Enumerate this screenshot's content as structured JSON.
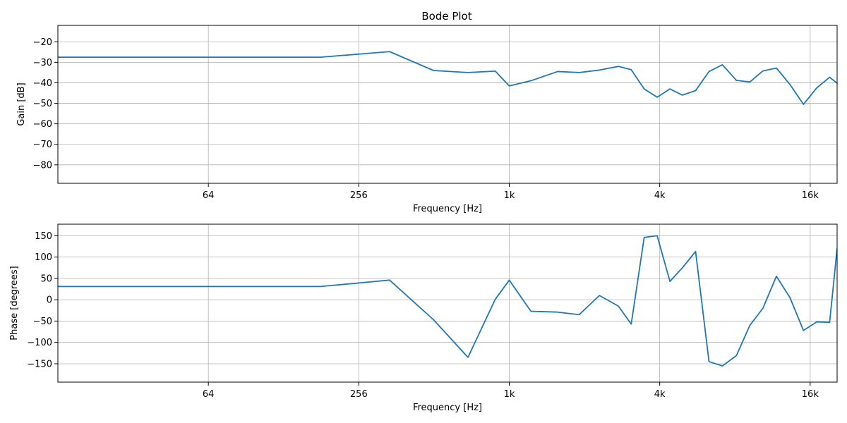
{
  "chart_data": [
    {
      "type": "line",
      "title": "Bode Plot",
      "xlabel": "Frequency [Hz]",
      "ylabel": "Gain [dB]",
      "xscale": "log2",
      "xlim": [
        16,
        21000
      ],
      "ylim": [
        -89,
        -12
      ],
      "xticks": [
        64,
        256,
        1024,
        4096,
        16384
      ],
      "xtick_labels": [
        "64",
        "256",
        "1k",
        "4k",
        "16k"
      ],
      "yticks": [
        -80,
        -70,
        -60,
        -50,
        -40,
        -30,
        -20
      ],
      "ytick_labels": [
        "−80",
        "−70",
        "−60",
        "−50",
        "−40",
        "−30",
        "−20"
      ],
      "grid": true,
      "color": "#1f77b4",
      "series": [
        {
          "x": [
            16,
            180,
            340,
            510,
            700,
            900,
            1024,
            1250,
            1600,
            1950,
            2350,
            2800,
            3150,
            3550,
            4000,
            4500,
            5050,
            5700,
            6450,
            7300,
            8300,
            9400,
            10600,
            12000,
            13600,
            15400,
            17400,
            19600,
            21000
          ],
          "y": [
            -27.5,
            -27.5,
            -24.8,
            -34,
            -35,
            -34.3,
            -41.5,
            -39,
            -34.5,
            -35,
            -33.8,
            -32,
            -33.6,
            -43,
            -47,
            -43,
            -46,
            -43.8,
            -34.5,
            -31.2,
            -38.8,
            -39.6,
            -34.2,
            -32.8,
            -40.8,
            -50.5,
            -42.5,
            -37.3,
            -40.2
          ]
        }
      ]
    },
    {
      "type": "line",
      "title": "",
      "xlabel": "Frequency [Hz]",
      "ylabel": "Phase [degrees]",
      "xscale": "log2",
      "xlim": [
        16,
        21000
      ],
      "ylim": [
        -193,
        177
      ],
      "xticks": [
        64,
        256,
        1024,
        4096,
        16384
      ],
      "xtick_labels": [
        "64",
        "256",
        "1k",
        "4k",
        "16k"
      ],
      "yticks": [
        -150,
        -100,
        -50,
        0,
        50,
        100,
        150
      ],
      "ytick_labels": [
        "−150",
        "−100",
        "−50",
        "0",
        "50",
        "100",
        "150"
      ],
      "grid": true,
      "color": "#1f77b4",
      "series": [
        {
          "x": [
            16,
            180,
            340,
            510,
            700,
            900,
            1024,
            1250,
            1600,
            1950,
            2350,
            2800,
            3150,
            3550,
            4000,
            4500,
            5050,
            5700,
            6450,
            7300,
            8300,
            9400,
            10600,
            12000,
            13600,
            15400,
            17400,
            19600,
            21000
          ],
          "y": [
            31,
            31,
            46,
            -47,
            -135,
            1,
            46,
            -27,
            -29,
            -35,
            10,
            -15,
            -57,
            146,
            150,
            43,
            75,
            113,
            -145,
            -155,
            -131,
            -60,
            -20,
            55,
            5,
            -72,
            -52,
            -53,
            120
          ]
        }
      ]
    }
  ]
}
